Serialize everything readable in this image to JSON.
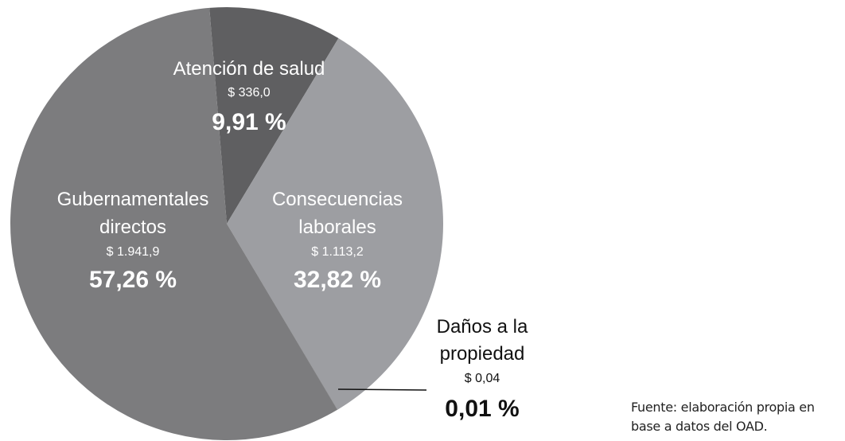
{
  "chart_data": {
    "type": "pie",
    "categories": [
      "Atención de salud",
      "Consecuencias laborales",
      "Daños a la propiedad",
      "Gubernamentales directos"
    ],
    "values": [
      9.91,
      32.82,
      0.01,
      57.26
    ],
    "value_labels": [
      "9,91 %",
      "32,82 %",
      "0,01 %",
      "57,26 %"
    ],
    "amounts": [
      336.0,
      1113.2,
      0.04,
      1941.9
    ],
    "amount_labels": [
      "$ 336,0",
      "$ 1.113,2",
      "$ 0,04",
      "$ 1.941,9"
    ],
    "colors": [
      "#5f5f61",
      "#9d9ea2",
      "#333333",
      "#7c7c7e"
    ],
    "source": "Fuente: elaboración propia en base a datos del OAD."
  }
}
